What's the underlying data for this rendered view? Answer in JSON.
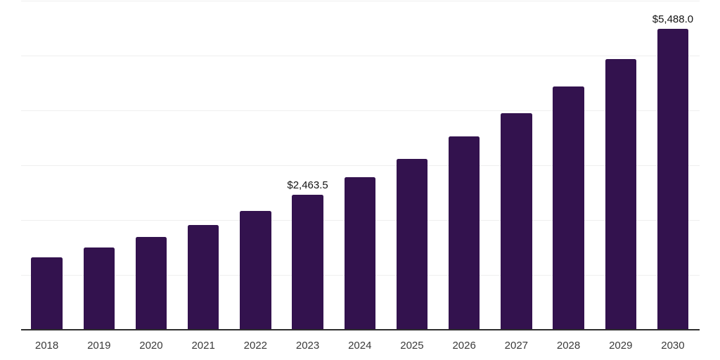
{
  "chart_data": {
    "type": "bar",
    "title": "",
    "xlabel": "",
    "ylabel": "",
    "categories": [
      "2018",
      "2019",
      "2020",
      "2021",
      "2022",
      "2023",
      "2024",
      "2025",
      "2026",
      "2027",
      "2028",
      "2029",
      "2030"
    ],
    "values": [
      1315,
      1505,
      1690,
      1905,
      2170,
      2463.5,
      2785,
      3120,
      3520,
      3955,
      4430,
      4940,
      5488
    ],
    "data_labels": [
      {
        "category": "2023",
        "text": "$2,463.5"
      },
      {
        "category": "2030",
        "text": "$5,488.0"
      }
    ],
    "ylim": [
      0,
      6000
    ],
    "grid_step": 1000,
    "grid": "horizontal",
    "y_tick_labels_visible": false,
    "legend_position": "none",
    "colors": {
      "bar": "#33124e",
      "gridline": "#efefef",
      "axis_line": "#2e2e2e",
      "tick_label": "#3a3a3a",
      "data_label": "#141414",
      "background": "#ffffff"
    }
  }
}
